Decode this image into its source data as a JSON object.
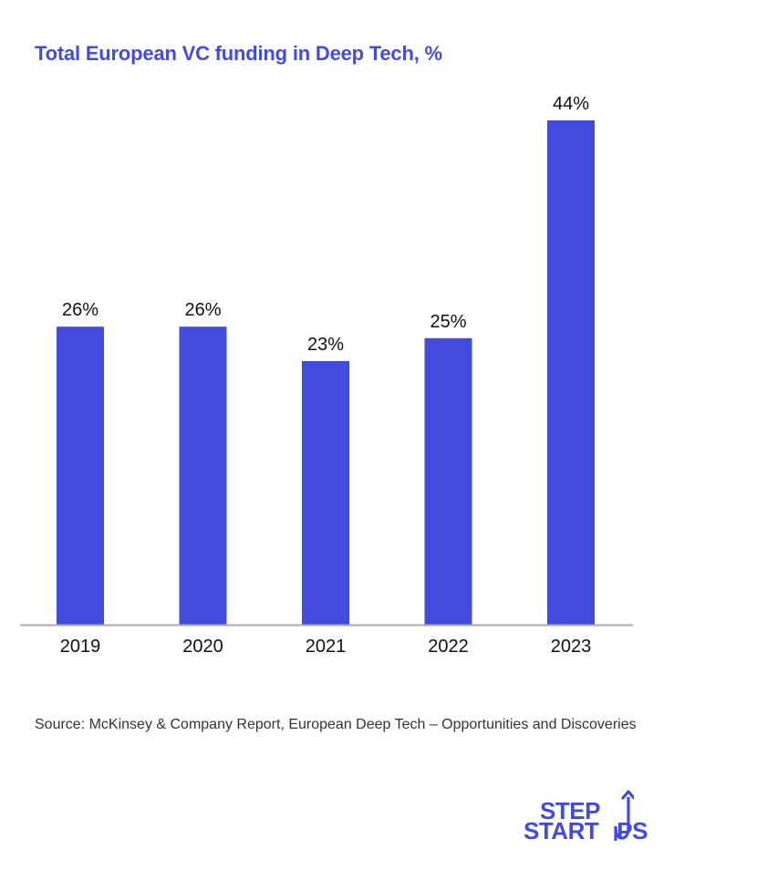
{
  "colors": {
    "accent": "#434bdc",
    "text": "#111111",
    "axis": "#aaaaaa",
    "source_text": "#333333"
  },
  "chart_data": {
    "type": "bar",
    "title": "Total European VC funding in Deep Tech, %",
    "categories": [
      "2019",
      "2020",
      "2021",
      "2022",
      "2023"
    ],
    "values": [
      26,
      26,
      23,
      25,
      44
    ],
    "value_labels": [
      "26%",
      "26%",
      "23%",
      "25%",
      "44%"
    ],
    "unit": "%",
    "xlabel": "",
    "ylabel": "",
    "ylim": [
      0,
      44
    ],
    "grid": false,
    "legend": "none",
    "data_labels": "above-bars"
  },
  "source": "Source: McKinsey & Company Report, European Deep Tech – Opportunities and Discoveries",
  "logo": {
    "line1": "STEP",
    "line2_a": "START",
    "line2_b": "PS"
  }
}
